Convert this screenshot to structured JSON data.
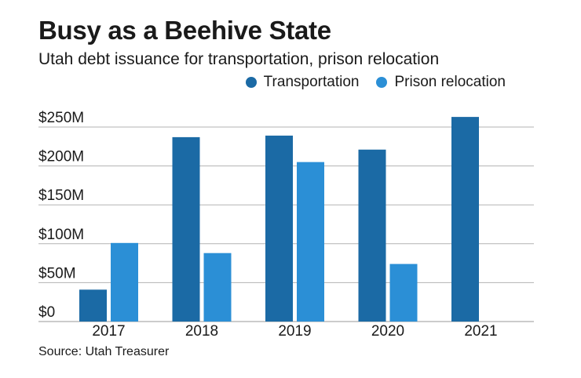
{
  "chart_data": {
    "type": "bar",
    "title": "Busy as a Beehive State",
    "subtitle": "Utah debt issuance for transportation, prison relocation",
    "source": "Source: Utah Treasurer",
    "categories": [
      "2017",
      "2018",
      "2019",
      "2020",
      "2021"
    ],
    "series": [
      {
        "name": "Transportation",
        "color": "#1b6aa5",
        "values": [
          41,
          237,
          239,
          221,
          263
        ]
      },
      {
        "name": "Prison relocation",
        "color": "#2b8fd6",
        "values": [
          101,
          88,
          205,
          74,
          null
        ]
      }
    ],
    "yticks": [
      0,
      50,
      100,
      150,
      200,
      250
    ],
    "ytick_labels": [
      "$0",
      "$50M",
      "$100M",
      "$150M",
      "$200M",
      "$250M"
    ],
    "ylim": [
      0,
      250
    ],
    "xlabel": "",
    "ylabel": "",
    "grid": true,
    "legend": "top-right"
  }
}
